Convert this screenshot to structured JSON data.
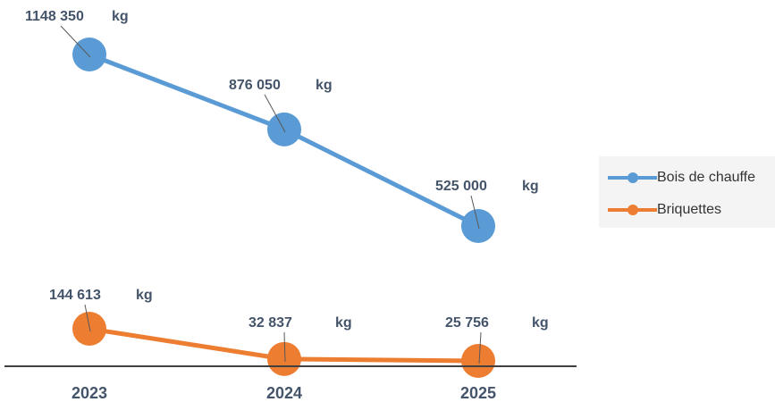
{
  "chart_data": {
    "type": "line",
    "x": [
      "2023",
      "2024",
      "2025"
    ],
    "unit": "kg",
    "series": [
      {
        "name": "Bois de chauffe",
        "color": "#5b9bd5",
        "values": [
          1148350,
          876050,
          525000
        ],
        "labels": [
          "1148 350",
          "876 050",
          "525 000"
        ]
      },
      {
        "name": "Briquettes",
        "color": "#ed7d31",
        "values": [
          144613,
          32837,
          25756
        ],
        "labels": [
          "144 613",
          "32 837",
          "25 756"
        ]
      }
    ],
    "axis_color": "#404040",
    "label_color": "#44546a",
    "grid": false,
    "legend": "right"
  }
}
